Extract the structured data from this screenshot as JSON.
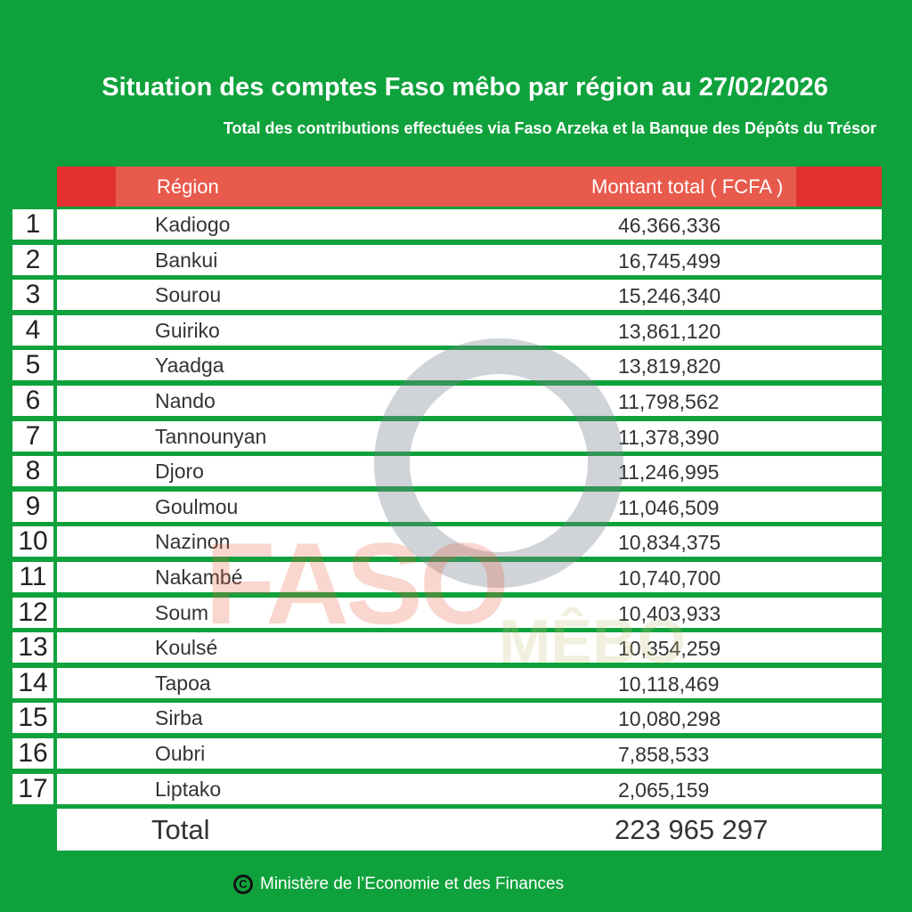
{
  "title": "Situation des comptes Faso mêbo par région au 27/02/2026",
  "subtitle": "Total des contributions effectuées via Faso Arzeka et la Banque des Dépôts du Trésor",
  "table": {
    "headers": {
      "region": "Région",
      "amount": "Montant total ( FCFA )"
    },
    "rows": [
      {
        "rank": "1",
        "region": "Kadiogo",
        "amount": "46,366,336"
      },
      {
        "rank": "2",
        "region": "Bankui",
        "amount": "16,745,499"
      },
      {
        "rank": "3",
        "region": "Sourou",
        "amount": "15,246,340"
      },
      {
        "rank": "4",
        "region": "Guiriko",
        "amount": "13,861,120"
      },
      {
        "rank": "5",
        "region": "Yaadga",
        "amount": "13,819,820"
      },
      {
        "rank": "6",
        "region": "Nando",
        "amount": "11,798,562"
      },
      {
        "rank": "7",
        "region": "Tannounyan",
        "amount": "11,378,390"
      },
      {
        "rank": "8",
        "region": "Djoro",
        "amount": "11,246,995"
      },
      {
        "rank": "9",
        "region": "Goulmou",
        "amount": "11,046,509"
      },
      {
        "rank": "10",
        "region": "Nazinon",
        "amount": "10,834,375"
      },
      {
        "rank": "11",
        "region": "Nakambé",
        "amount": "10,740,700"
      },
      {
        "rank": "12",
        "region": "Soum",
        "amount": "10,403,933"
      },
      {
        "rank": "13",
        "region": "Koulsé",
        "amount": "10,354,259"
      },
      {
        "rank": "14",
        "region": "Tapoa",
        "amount": "10,118,469"
      },
      {
        "rank": "15",
        "region": "Sirba",
        "amount": "10,080,298"
      },
      {
        "rank": "16",
        "region": "Oubri",
        "amount": "7,858,533"
      },
      {
        "rank": "17",
        "region": "Liptako",
        "amount": "2,065,159"
      }
    ],
    "total": {
      "label": "Total",
      "amount": "223 965 297"
    }
  },
  "footer": {
    "copyright_icon": "copyright-icon",
    "symbol": "C",
    "text": "Ministère de l’Economie et des Finances"
  },
  "watermark": {
    "logo_text": "FASO MÊBO"
  },
  "colors": {
    "background": "#0fa23c",
    "header": "#e2312f",
    "header_inner": "#e85a4c"
  }
}
